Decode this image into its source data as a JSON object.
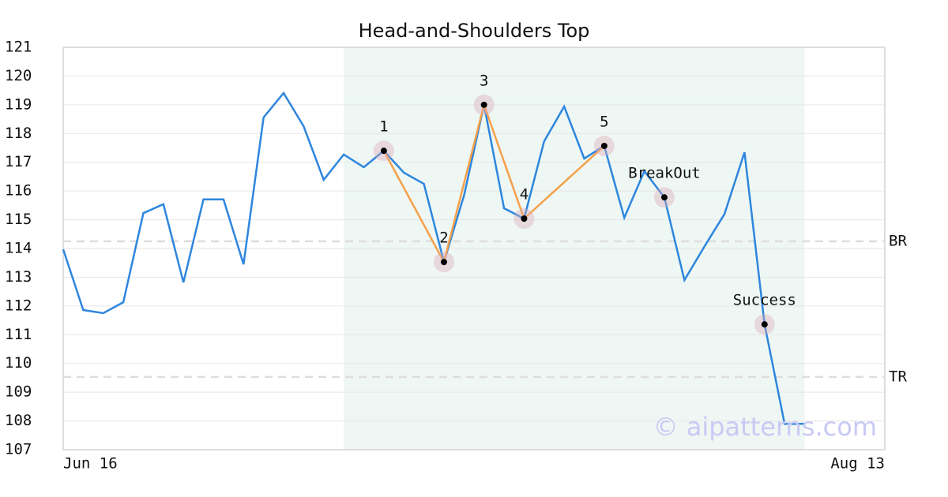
{
  "chart_data": {
    "type": "line",
    "title": "Head-and-Shoulders Top",
    "x": [
      0,
      1,
      2,
      3,
      4,
      5,
      6,
      7,
      8,
      9,
      10,
      11,
      12,
      13,
      14,
      15,
      16,
      17,
      18,
      19,
      20,
      21,
      22,
      23,
      24,
      25,
      26,
      27,
      28,
      29,
      30,
      31,
      32,
      33,
      34,
      35,
      36,
      37
    ],
    "series": [
      {
        "color": "#2e86de",
        "values": [
          113.97,
          111.86,
          111.75,
          112.13,
          115.23,
          115.54,
          112.82,
          115.71,
          115.71,
          113.45,
          118.56,
          119.41,
          118.25,
          116.39,
          117.27,
          116.83,
          117.4,
          116.64,
          116.25,
          113.53,
          115.84,
          119.0,
          115.4,
          115.04,
          117.73,
          118.94,
          117.13,
          117.57,
          115.07,
          116.69,
          115.78,
          112.9,
          114.07,
          115.2,
          117.35,
          111.36,
          107.9,
          107.9
        ]
      }
    ],
    "xlim": [
      0,
      41
    ],
    "xticks": [
      {
        "value": 0,
        "label": "Jun 16"
      },
      {
        "value": 41,
        "label": "Aug 13"
      }
    ],
    "ylim": [
      107,
      121
    ],
    "yticks": [
      107,
      108,
      109,
      110,
      111,
      112,
      113,
      114,
      115,
      116,
      117,
      118,
      119,
      120,
      121
    ],
    "grid": true,
    "shade": {
      "x": [
        14,
        37
      ],
      "color": "#eef7f3"
    },
    "pattern_color": "#f5a04a",
    "pattern_points": [
      {
        "label": "1",
        "x": 16,
        "value": 117.4
      },
      {
        "label": "2",
        "x": 19,
        "value": 113.53
      },
      {
        "label": "3",
        "x": 21,
        "value": 119.0
      },
      {
        "label": "4",
        "x": 23,
        "value": 115.04
      },
      {
        "label": "5",
        "x": 27,
        "value": 117.57
      }
    ],
    "signal_points": [
      {
        "label": "BreakOut",
        "x": 30,
        "value": 115.78
      },
      {
        "label": "Success",
        "x": 35,
        "value": 111.36
      }
    ],
    "hlines": [
      {
        "label": "BR",
        "value": 114.25
      },
      {
        "label": "TR",
        "value": 109.53
      }
    ],
    "watermark": "© aipatterns.com"
  }
}
